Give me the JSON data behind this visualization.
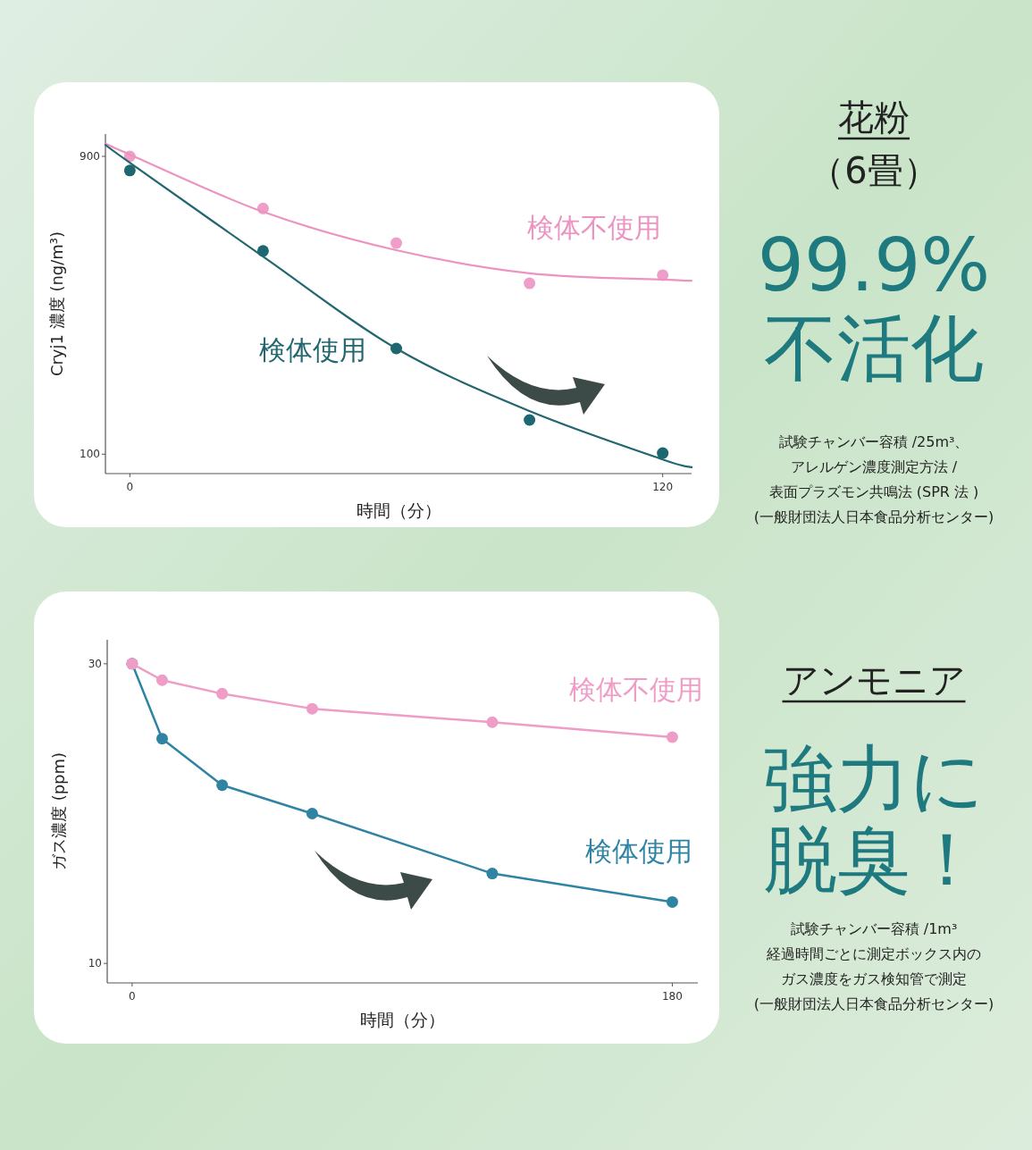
{
  "chart_data": [
    {
      "type": "line",
      "xlabel": "時間（分）",
      "ylabel": "Cryj1 濃度 (ng/m³)",
      "xlim": [
        -5.5,
        126.5
      ],
      "ylim": [
        48,
        960
      ],
      "xticks": [
        0,
        120
      ],
      "yticks": [
        100,
        900
      ],
      "grid": false,
      "annotations": [
        "花粉",
        "（6畳）",
        "99.9%",
        "不活化",
        "試験チャンバー容積 /25m³、",
        "アレルゲン濃度測定方法 /",
        "表面プラズモン共鳴法 (SPR 法 )",
        "(一般財団法人日本食品分析センター)"
      ],
      "series": [
        {
          "type": "scatter",
          "marker": "circle",
          "color": "#ee9ec8",
          "x": [
            0,
            30,
            60,
            90,
            120
          ],
          "values": [
            900,
            760,
            667,
            559,
            581
          ]
        },
        {
          "type": "line",
          "name": "検体不使用",
          "color": "#ec93c2",
          "x": [
            -5.5,
            0,
            30,
            60,
            90,
            120,
            126.5
          ],
          "values": [
            934,
            905,
            751,
            648,
            586,
            569,
            566
          ]
        },
        {
          "type": "scatter",
          "marker": "circle",
          "color": "#1d6770",
          "x": [
            0,
            30,
            60,
            90,
            120
          ],
          "values": [
            862,
            646,
            384,
            192,
            103
          ]
        },
        {
          "type": "line",
          "name": "検体使用",
          "color": "#22666f",
          "x": [
            -5.5,
            0,
            30,
            60,
            90,
            120,
            126.5
          ],
          "values": [
            931,
            883,
            631,
            384,
            216,
            86,
            65
          ]
        }
      ]
    },
    {
      "type": "line",
      "xlabel": "時間（分）",
      "ylabel": "ガス濃度 (ppm)",
      "xlim": [
        -8.3,
        188.5
      ],
      "ylim": [
        8.7,
        31.6
      ],
      "xticks": [
        0,
        180
      ],
      "yticks": [
        10,
        30
      ],
      "grid": false,
      "marker": "circle",
      "annotations": [
        "アンモニア",
        "強力に",
        "脱臭！",
        "試験チャンバー容積 /1m³",
        "経過時間ごとに測定ボックス内の",
        "ガス濃度をガス検知管で測定",
        "(一般財団法人日本食品分析センター)"
      ],
      "series": [
        {
          "name": "検体不使用",
          "color": "#ef9cc6",
          "x": [
            0,
            10,
            30,
            60,
            120,
            180
          ],
          "values": [
            30,
            28.9,
            28.0,
            27.0,
            26.1,
            25.1
          ]
        },
        {
          "name": "検体使用",
          "color": "#2f84a3",
          "x": [
            0,
            10,
            30,
            60,
            120,
            180
          ],
          "values": [
            30,
            25.0,
            21.9,
            20.0,
            16.0,
            14.1
          ]
        }
      ]
    }
  ]
}
